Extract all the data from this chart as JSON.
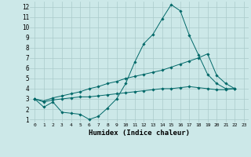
{
  "xlabel": "Humidex (Indice chaleur)",
  "background_color": "#cce8e8",
  "grid_color": "#aacaca",
  "line_color": "#006868",
  "xlim": [
    -0.5,
    23.5
  ],
  "ylim": [
    0.7,
    12.5
  ],
  "xticks": [
    0,
    1,
    2,
    3,
    4,
    5,
    6,
    7,
    8,
    9,
    10,
    11,
    12,
    13,
    14,
    15,
    16,
    17,
    18,
    19,
    20,
    21,
    22,
    23
  ],
  "yticks": [
    1,
    2,
    3,
    4,
    5,
    6,
    7,
    8,
    9,
    10,
    11,
    12
  ],
  "series": [
    [
      3.0,
      2.2,
      2.7,
      1.7,
      1.6,
      1.5,
      1.0,
      1.3,
      2.1,
      3.0,
      4.5,
      6.6,
      8.4,
      9.3,
      10.8,
      12.2,
      11.6,
      9.2,
      7.3,
      5.4,
      4.5,
      4.0,
      4.0
    ],
    [
      3.0,
      2.8,
      3.1,
      3.3,
      3.5,
      3.7,
      4.0,
      4.2,
      4.5,
      4.7,
      5.0,
      5.2,
      5.4,
      5.6,
      5.8,
      6.1,
      6.4,
      6.7,
      7.0,
      7.4,
      5.3,
      4.5,
      4.0
    ],
    [
      3.0,
      2.7,
      2.9,
      3.0,
      3.1,
      3.2,
      3.2,
      3.3,
      3.4,
      3.5,
      3.6,
      3.7,
      3.8,
      3.9,
      4.0,
      4.0,
      4.1,
      4.2,
      4.1,
      4.0,
      3.9,
      3.9,
      4.0
    ]
  ]
}
